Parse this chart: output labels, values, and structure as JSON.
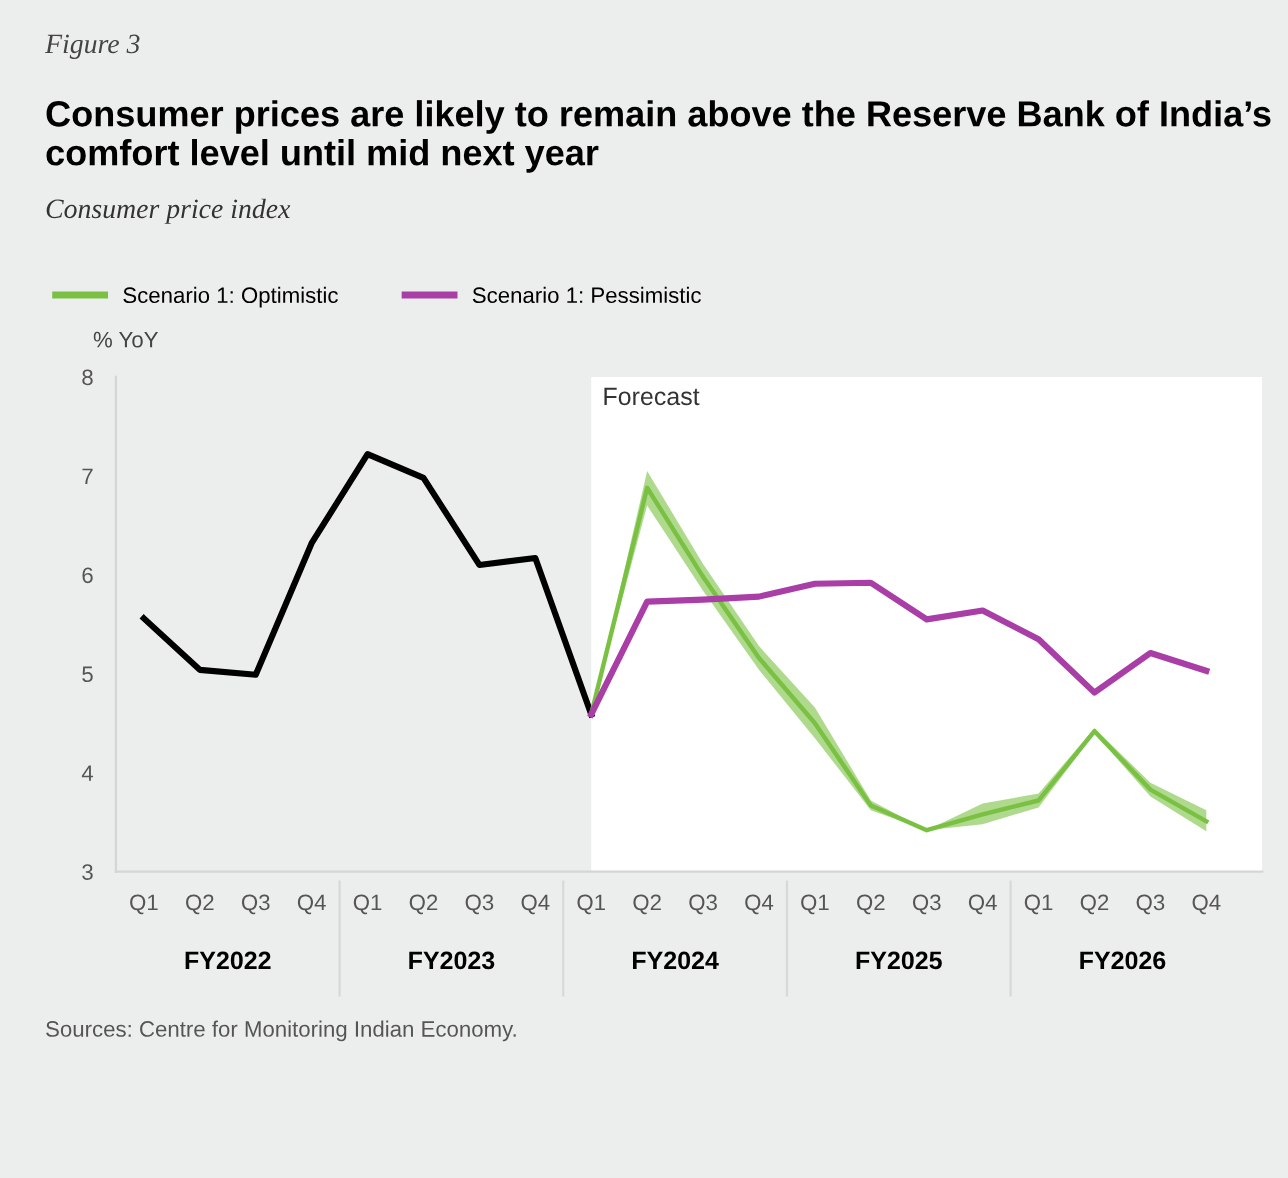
{
  "chart_data": {
    "type": "line",
    "title": "Consumer prices are likely to remain above the Reserve Bank of India’s comfort level until mid next year",
    "subtitle": "Consumer price index",
    "ylabel": "% YoY",
    "categories": [
      "Q1",
      "Q2",
      "Q3",
      "Q4",
      "Q1",
      "Q2",
      "Q3",
      "Q4",
      "Q1",
      "Q2",
      "Q3",
      "Q4",
      "Q1",
      "Q2",
      "Q3",
      "Q4",
      "Q1",
      "Q2",
      "Q3",
      "Q4"
    ],
    "series": [
      {
        "color": "#000000",
        "values": [
          5.56,
          5.04,
          4.99,
          6.32,
          7.22,
          6.98,
          6.1,
          6.17,
          4.59,
          null,
          null,
          null,
          null,
          null,
          null,
          null,
          null,
          null,
          null,
          null
        ]
      },
      {
        "name": "Scenario 1: Optimistic",
        "color": "#7ac143",
        "values": [
          null,
          null,
          null,
          null,
          null,
          null,
          null,
          null,
          4.59,
          6.88,
          5.98,
          5.16,
          4.5,
          3.67,
          3.42,
          3.58,
          3.72,
          4.42,
          3.83,
          3.51
        ],
        "lower": [
          null,
          null,
          null,
          null,
          null,
          null,
          null,
          null,
          4.59,
          6.7,
          5.84,
          5.04,
          4.35,
          3.62,
          3.42,
          3.48,
          3.65,
          4.4,
          3.76,
          3.41
        ],
        "upper": [
          null,
          null,
          null,
          null,
          null,
          null,
          null,
          null,
          4.59,
          7.05,
          6.11,
          5.28,
          4.66,
          3.72,
          3.42,
          3.69,
          3.79,
          4.45,
          3.9,
          3.62
        ]
      },
      {
        "name": "Scenario 1: Pessimistic",
        "color": "#a83ea6",
        "values": [
          null,
          null,
          null,
          null,
          null,
          null,
          null,
          null,
          4.59,
          5.73,
          5.75,
          5.78,
          5.91,
          5.92,
          5.55,
          5.64,
          5.35,
          4.81,
          5.21,
          5.03
        ]
      }
    ],
    "ylim": [
      3,
      8
    ],
    "yticks": [
      3,
      4,
      5,
      6,
      7,
      8
    ],
    "annotations": [
      "Figure 3",
      "Forecast",
      "FY2022",
      "FY2023",
      "FY2024",
      "FY2025",
      "FY2026",
      "Sources: Centre for Monitoring Indian Economy."
    ],
    "legend": "top left",
    "grid": false,
    "marker": "none",
    "line_style": "solid"
  }
}
